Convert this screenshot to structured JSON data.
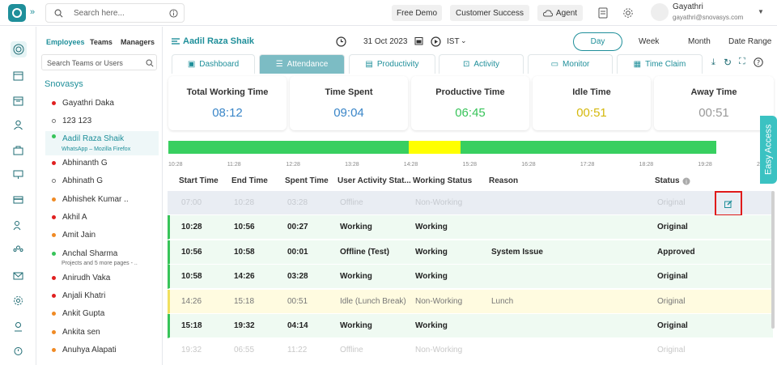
{
  "topbar": {
    "search_placeholder": "Search here...",
    "free_demo": "Free Demo",
    "customer_success": "Customer Success",
    "agent": "Agent",
    "user_name": "Gayathri",
    "user_email": "gayathri@snovasys.com"
  },
  "emp_panel": {
    "tabs": [
      "Employees",
      "Teams",
      "Managers"
    ],
    "search_placeholder": "Search Teams or Users",
    "org": "Snovasys",
    "items": [
      {
        "name": "Gayathri Daka",
        "status": "red"
      },
      {
        "name": "123 123",
        "status": "hollow"
      },
      {
        "name": "Aadil Raza Shaik",
        "status": "green",
        "sub": "WhatsApp – Mozilla Firefox",
        "selected": true
      },
      {
        "name": "Abhinanth G",
        "status": "red"
      },
      {
        "name": "Abhinath G",
        "status": "hollow"
      },
      {
        "name": "Abhishek Kumar ..",
        "status": "orange"
      },
      {
        "name": "Akhil A",
        "status": "red"
      },
      {
        "name": "Amit Jain",
        "status": "orange"
      },
      {
        "name": "Anchal Sharma",
        "status": "green",
        "sub": "Projects and 5 more pages - .."
      },
      {
        "name": "Anirudh Vaka",
        "status": "red"
      },
      {
        "name": "Anjali Khatri",
        "status": "red"
      },
      {
        "name": "Ankit Gupta",
        "status": "orange"
      },
      {
        "name": "Ankita sen",
        "status": "orange"
      },
      {
        "name": "Anuhya Alapati",
        "status": "orange"
      }
    ]
  },
  "main": {
    "employee_name": "Aadil Raza Shaik",
    "date": "31 Oct 2023",
    "timezone": "IST",
    "periods": [
      "Day",
      "Week",
      "Month",
      "Date Range"
    ],
    "tabs": [
      "Dashboard",
      "Attendance",
      "Productivity",
      "Activity",
      "Monitor",
      "Time Claim"
    ],
    "cards": [
      {
        "title": "Total Working Time",
        "value": "08:12",
        "color": "#3a86c8"
      },
      {
        "title": "Time Spent",
        "value": "09:04",
        "color": "#3a86c8"
      },
      {
        "title": "Productive Time",
        "value": "06:45",
        "color": "#38c45a"
      },
      {
        "title": "Idle Time",
        "value": "00:51",
        "color": "#d4b80c"
      },
      {
        "title": "Away Time",
        "value": "00:51",
        "color": "#999999"
      }
    ],
    "timeline_ticks": [
      "10:28",
      "11:28",
      "12:28",
      "13:28",
      "14:28",
      "15:28",
      "16:28",
      "17:28",
      "18:28",
      "19:28",
      "2"
    ],
    "table_headers": [
      "Start Time",
      "End Time",
      "Spent Time",
      "User Activity Stat...",
      "Working Status",
      "Reason",
      "Status"
    ],
    "rows": [
      {
        "start": "07:00",
        "end": "10:28",
        "spent": "03:28",
        "activity": "Offline",
        "working": "Non-Working",
        "reason": "",
        "status": "Original",
        "type": "faded-blue"
      },
      {
        "start": "10:28",
        "end": "10:56",
        "spent": "00:27",
        "activity": "Working",
        "working": "Working",
        "reason": "",
        "status": "Original",
        "type": "green"
      },
      {
        "start": "10:56",
        "end": "10:58",
        "spent": "00:01",
        "activity": "Offline (Test)",
        "working": "Working",
        "reason": "System Issue",
        "status": "Approved",
        "type": "green"
      },
      {
        "start": "10:58",
        "end": "14:26",
        "spent": "03:28",
        "activity": "Working",
        "working": "Working",
        "reason": "",
        "status": "Original",
        "type": "green"
      },
      {
        "start": "14:26",
        "end": "15:18",
        "spent": "00:51",
        "activity": "Idle (Lunch Break)",
        "working": "Non-Working",
        "reason": "Lunch",
        "status": "Original",
        "type": "yellow"
      },
      {
        "start": "15:18",
        "end": "19:32",
        "spent": "04:14",
        "activity": "Working",
        "working": "Working",
        "reason": "",
        "status": "Original",
        "type": "green"
      },
      {
        "start": "19:32",
        "end": "06:55",
        "spent": "11:22",
        "activity": "Offline",
        "working": "Non-Working",
        "reason": "",
        "status": "Original",
        "type": "faded"
      }
    ],
    "easy_access": "Easy Access"
  }
}
